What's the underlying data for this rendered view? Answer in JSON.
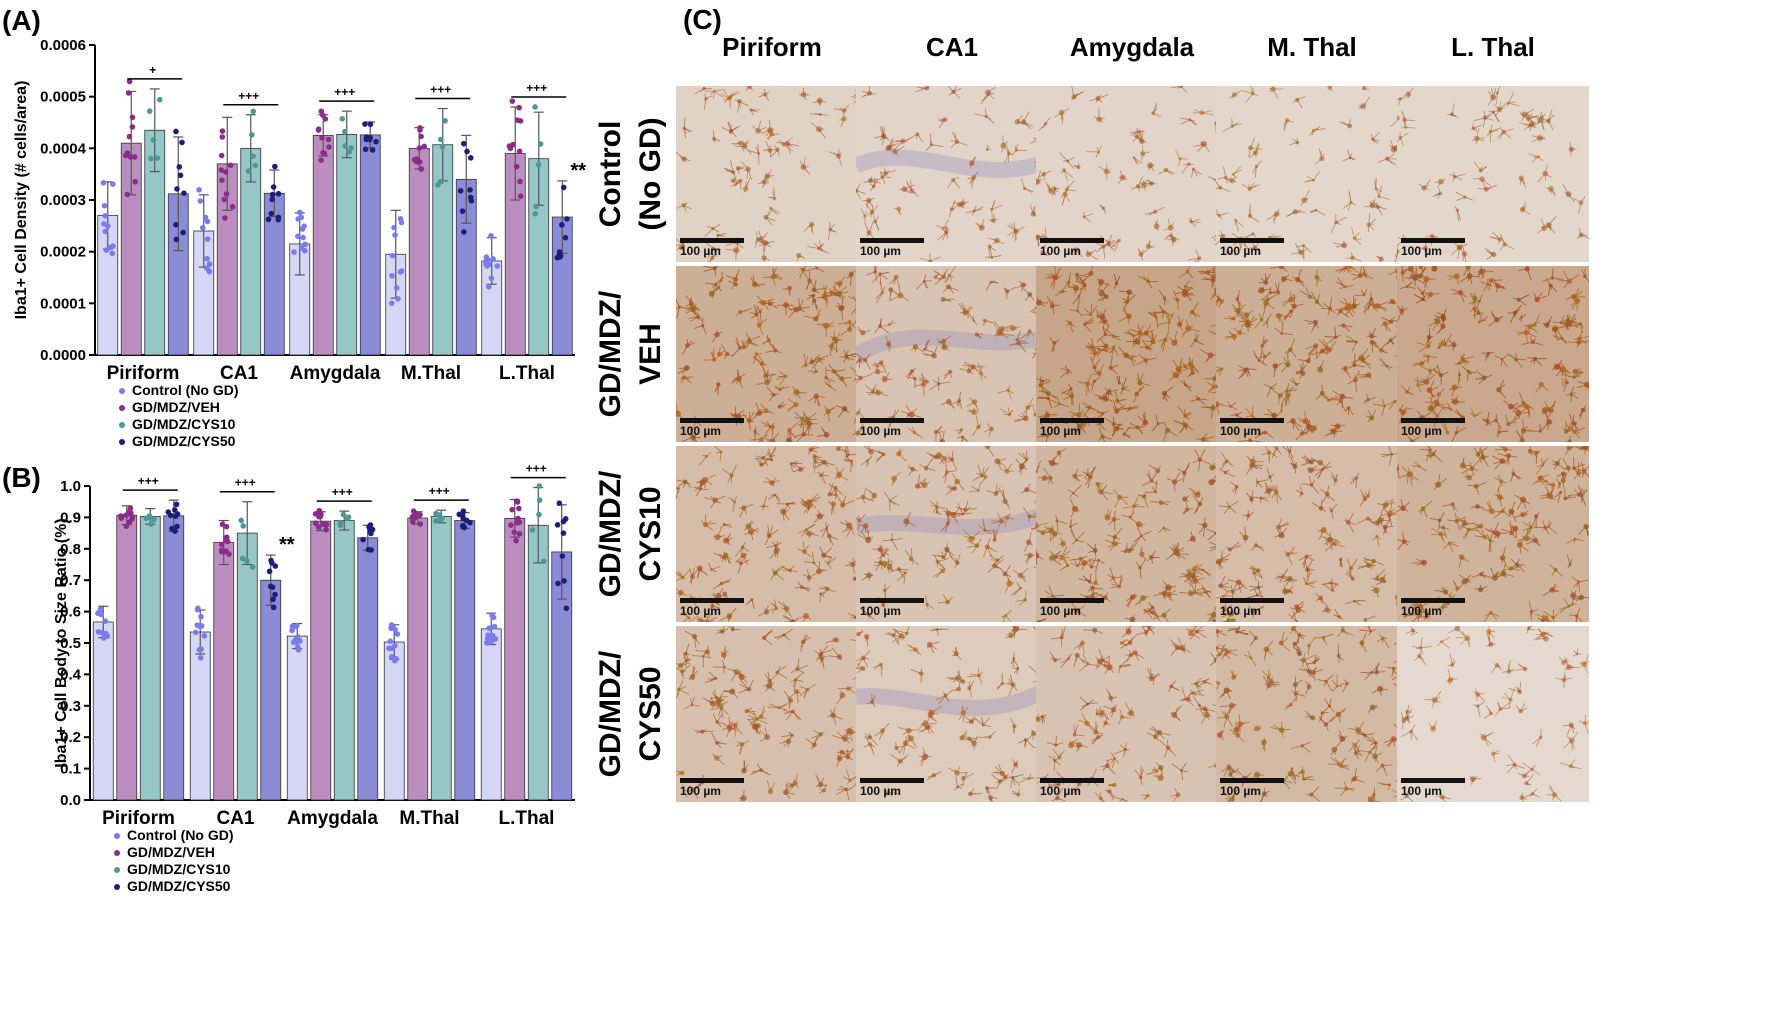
{
  "colors": {
    "control": "#7B7BF0",
    "veh": "#8B2C8B",
    "cys10": "#4E9797",
    "cys50": "#1E1E78",
    "control_bar": "#D6D6F7",
    "veh_bar": "#BC8EBF",
    "cys10_bar": "#96C6C6",
    "cys50_bar": "#8C8CD6"
  },
  "panels": {
    "a": "(A)",
    "b": "(B)",
    "c": "(C)"
  },
  "chart_data": [
    {
      "type": "bar",
      "ylabel": "Iba1+ Cell Density (# cells/area)",
      "ylim": [
        0,
        0.0006
      ],
      "yticks": [
        "0.0000",
        "0.0001",
        "0.0002",
        "0.0003",
        "0.0004",
        "0.0005",
        "0.0006"
      ],
      "categories": [
        "Piriform",
        "CA1",
        "Amygdala",
        "M.Thal",
        "L.Thal"
      ],
      "series": [
        {
          "name": "Control (No GD)",
          "values": [
            0.00027,
            0.00024,
            0.000215,
            0.000195,
            0.000182
          ],
          "err": [
            6.5e-05,
            7e-05,
            6e-05,
            8.5e-05,
            4.5e-05
          ]
        },
        {
          "name": "GD/MDZ/VEH",
          "values": [
            0.00041,
            0.00037,
            0.000425,
            0.0004,
            0.00039
          ],
          "err": [
            0.0001,
            9e-05,
            4e-05,
            4e-05,
            9e-05
          ]
        },
        {
          "name": "GD/MDZ/CYS10",
          "values": [
            0.000435,
            0.0004,
            0.000427,
            0.000407,
            0.00038
          ],
          "err": [
            8e-05,
            6.5e-05,
            4.5e-05,
            7e-05,
            9e-05
          ]
        },
        {
          "name": "GD/MDZ/CYS50",
          "values": [
            0.000312,
            0.000313,
            0.000426,
            0.00034,
            0.000267
          ],
          "err": [
            0.00011,
            4.5e-05,
            2.5e-05,
            8.5e-05,
            7e-05
          ]
        }
      ],
      "significance": [
        "+",
        "+++",
        "+++",
        "+++",
        "+++"
      ],
      "stars": {
        "category_index": 4,
        "series_index": 3,
        "text": "**"
      }
    },
    {
      "type": "bar",
      "ylabel": "Iba1+ Cell Body to Size Ratio (%)",
      "ylim": [
        0,
        1.0
      ],
      "yticks": [
        "0.0",
        "0.1",
        "0.2",
        "0.3",
        "0.4",
        "0.5",
        "0.6",
        "0.7",
        "0.8",
        "0.9",
        "1.0"
      ],
      "categories": [
        "Piriform",
        "CA1",
        "Amygdala",
        "M.Thal",
        "L.Thal"
      ],
      "series": [
        {
          "name": "Control (No GD)",
          "values": [
            0.567,
            0.535,
            0.522,
            0.503,
            0.545
          ],
          "err": [
            0.05,
            0.07,
            0.04,
            0.055,
            0.05
          ]
        },
        {
          "name": "GD/MDZ/VEH",
          "values": [
            0.907,
            0.82,
            0.888,
            0.898,
            0.897
          ],
          "err": [
            0.03,
            0.07,
            0.03,
            0.02,
            0.06
          ]
        },
        {
          "name": "GD/MDZ/CYS10",
          "values": [
            0.903,
            0.85,
            0.89,
            0.903,
            0.875
          ],
          "err": [
            0.025,
            0.1,
            0.03,
            0.02,
            0.12
          ]
        },
        {
          "name": "GD/MDZ/CYS50",
          "values": [
            0.905,
            0.7,
            0.835,
            0.89,
            0.79
          ],
          "err": [
            0.05,
            0.08,
            0.04,
            0.025,
            0.15
          ]
        }
      ],
      "significance": [
        "+++",
        "+++",
        "+++",
        "+++",
        "+++"
      ],
      "stars": {
        "category_index": 1,
        "series_index": 3,
        "text": "**"
      }
    }
  ],
  "legend": [
    "Control (No GD)",
    "GD/MDZ/VEH",
    "GD/MDZ/CYS10",
    "GD/MDZ/CYS50"
  ],
  "micrographs": {
    "columns": [
      "Piriform",
      "CA1",
      "Amygdala",
      "M. Thal",
      "L. Thal"
    ],
    "rows": [
      {
        "label_lines": [
          "Control",
          "(No GD)"
        ],
        "stain_density": [
          0.25,
          0.22,
          0.22,
          0.2,
          0.18
        ]
      },
      {
        "label_lines": [
          "GD/MDZ/",
          "VEH"
        ],
        "stain_density": [
          0.75,
          0.45,
          0.9,
          0.75,
          0.85
        ]
      },
      {
        "label_lines": [
          "GD/MDZ/",
          "CYS10"
        ],
        "stain_density": [
          0.55,
          0.45,
          0.65,
          0.55,
          0.7
        ]
      },
      {
        "label_lines": [
          "GD/MDZ/",
          "CYS50"
        ],
        "stain_density": [
          0.5,
          0.35,
          0.45,
          0.6,
          0.15
        ]
      }
    ],
    "scale_bar": "100 µm"
  }
}
